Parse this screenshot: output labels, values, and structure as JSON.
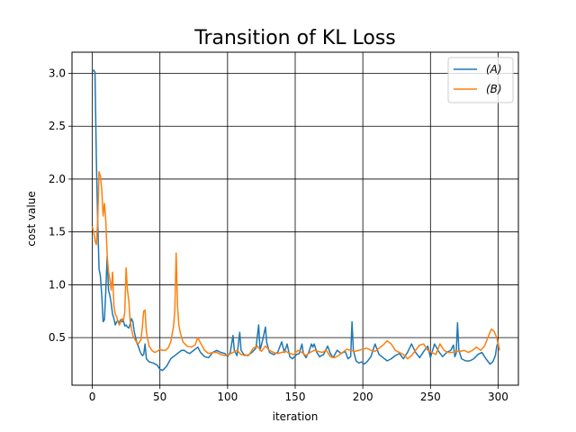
{
  "chart_data": {
    "type": "line",
    "title": "Transition of KL Loss",
    "xlabel": "iteration",
    "ylabel": "cost value",
    "xlim": [
      -15,
      315
    ],
    "ylim": [
      0.05,
      3.2
    ],
    "xticks": [
      0,
      50,
      100,
      150,
      200,
      250,
      300
    ],
    "yticks": [
      0.5,
      1.0,
      1.5,
      2.0,
      2.5,
      3.0
    ],
    "xtick_labels": [
      "0",
      "50",
      "100",
      "150",
      "200",
      "250",
      "300"
    ],
    "ytick_labels": [
      "0.5",
      "1.0",
      "1.5",
      "2.0",
      "2.5",
      "3.0"
    ],
    "grid": true,
    "legend_position": "top-right",
    "series": [
      {
        "name": "(A)",
        "color": "#1f77b4",
        "points": [
          [
            0,
            3.02
          ],
          [
            1,
            3.03
          ],
          [
            2,
            3.01
          ],
          [
            3,
            2.2
          ],
          [
            4,
            1.6
          ],
          [
            5,
            1.15
          ],
          [
            6,
            1.08
          ],
          [
            7,
            0.9
          ],
          [
            8,
            0.65
          ],
          [
            9,
            0.67
          ],
          [
            10,
            0.95
          ],
          [
            11,
            1.27
          ],
          [
            12,
            0.95
          ],
          [
            13,
            0.9
          ],
          [
            14,
            0.82
          ],
          [
            15,
            0.72
          ],
          [
            16,
            0.68
          ],
          [
            17,
            0.62
          ],
          [
            18,
            0.65
          ],
          [
            19,
            0.66
          ],
          [
            20,
            0.64
          ],
          [
            21,
            0.67
          ],
          [
            22,
            0.65
          ],
          [
            23,
            0.66
          ],
          [
            24,
            0.61
          ],
          [
            25,
            0.62
          ],
          [
            26,
            0.6
          ],
          [
            27,
            0.59
          ],
          [
            28,
            0.63
          ],
          [
            29,
            0.68
          ],
          [
            30,
            0.65
          ],
          [
            31,
            0.56
          ],
          [
            32,
            0.5
          ],
          [
            33,
            0.45
          ],
          [
            34,
            0.42
          ],
          [
            35,
            0.38
          ],
          [
            36,
            0.35
          ],
          [
            37,
            0.33
          ],
          [
            38,
            0.34
          ],
          [
            39,
            0.44
          ],
          [
            40,
            0.3
          ],
          [
            42,
            0.27
          ],
          [
            45,
            0.26
          ],
          [
            48,
            0.24
          ],
          [
            50,
            0.2
          ],
          [
            52,
            0.19
          ],
          [
            55,
            0.23
          ],
          [
            58,
            0.3
          ],
          [
            62,
            0.34
          ],
          [
            66,
            0.38
          ],
          [
            68,
            0.38
          ],
          [
            70,
            0.36
          ],
          [
            72,
            0.35
          ],
          [
            75,
            0.38
          ],
          [
            78,
            0.41
          ],
          [
            80,
            0.36
          ],
          [
            83,
            0.32
          ],
          [
            86,
            0.31
          ],
          [
            89,
            0.36
          ],
          [
            92,
            0.38
          ],
          [
            95,
            0.36
          ],
          [
            98,
            0.35
          ],
          [
            100,
            0.32
          ],
          [
            102,
            0.36
          ],
          [
            104,
            0.52
          ],
          [
            105,
            0.38
          ],
          [
            107,
            0.33
          ],
          [
            109,
            0.55
          ],
          [
            110,
            0.38
          ],
          [
            112,
            0.34
          ],
          [
            115,
            0.33
          ],
          [
            118,
            0.36
          ],
          [
            121,
            0.4
          ],
          [
            123,
            0.62
          ],
          [
            124,
            0.38
          ],
          [
            126,
            0.48
          ],
          [
            128,
            0.6
          ],
          [
            129,
            0.45
          ],
          [
            131,
            0.36
          ],
          [
            134,
            0.34
          ],
          [
            137,
            0.36
          ],
          [
            140,
            0.46
          ],
          [
            142,
            0.36
          ],
          [
            144,
            0.44
          ],
          [
            146,
            0.32
          ],
          [
            148,
            0.3
          ],
          [
            151,
            0.34
          ],
          [
            153,
            0.35
          ],
          [
            155,
            0.44
          ],
          [
            156,
            0.35
          ],
          [
            158,
            0.31
          ],
          [
            160,
            0.36
          ],
          [
            162,
            0.44
          ],
          [
            163,
            0.41
          ],
          [
            164,
            0.44
          ],
          [
            166,
            0.36
          ],
          [
            168,
            0.32
          ],
          [
            171,
            0.34
          ],
          [
            174,
            0.42
          ],
          [
            176,
            0.35
          ],
          [
            178,
            0.31
          ],
          [
            181,
            0.38
          ],
          [
            184,
            0.35
          ],
          [
            187,
            0.37
          ],
          [
            189,
            0.3
          ],
          [
            191,
            0.32
          ],
          [
            192,
            0.65
          ],
          [
            193,
            0.38
          ],
          [
            195,
            0.28
          ],
          [
            197,
            0.26
          ],
          [
            199,
            0.27
          ],
          [
            201,
            0.25
          ],
          [
            203,
            0.27
          ],
          [
            206,
            0.32
          ],
          [
            209,
            0.44
          ],
          [
            212,
            0.34
          ],
          [
            215,
            0.31
          ],
          [
            218,
            0.28
          ],
          [
            221,
            0.3
          ],
          [
            224,
            0.33
          ],
          [
            227,
            0.35
          ],
          [
            230,
            0.3
          ],
          [
            233,
            0.36
          ],
          [
            236,
            0.44
          ],
          [
            239,
            0.36
          ],
          [
            242,
            0.31
          ],
          [
            245,
            0.37
          ],
          [
            248,
            0.42
          ],
          [
            250,
            0.31
          ],
          [
            253,
            0.44
          ],
          [
            256,
            0.37
          ],
          [
            259,
            0.32
          ],
          [
            262,
            0.36
          ],
          [
            265,
            0.38
          ],
          [
            267,
            0.43
          ],
          [
            268,
            0.32
          ],
          [
            269,
            0.35
          ],
          [
            270,
            0.64
          ],
          [
            271,
            0.38
          ],
          [
            273,
            0.3
          ],
          [
            276,
            0.28
          ],
          [
            279,
            0.28
          ],
          [
            282,
            0.3
          ],
          [
            285,
            0.34
          ],
          [
            288,
            0.36
          ],
          [
            291,
            0.3
          ],
          [
            294,
            0.25
          ],
          [
            296,
            0.27
          ],
          [
            298,
            0.33
          ],
          [
            299,
            0.42
          ],
          [
            300,
            0.45
          ],
          [
            301,
            0.38
          ]
        ]
      },
      {
        "name": "(B)",
        "color": "#ff7f0e",
        "points": [
          [
            0,
            1.55
          ],
          [
            1,
            1.5
          ],
          [
            2,
            1.42
          ],
          [
            3,
            1.38
          ],
          [
            4,
            1.6
          ],
          [
            5,
            2.07
          ],
          [
            6,
            2.03
          ],
          [
            7,
            1.9
          ],
          [
            8,
            1.65
          ],
          [
            9,
            1.77
          ],
          [
            10,
            1.6
          ],
          [
            11,
            1.28
          ],
          [
            12,
            1.12
          ],
          [
            13,
            1.05
          ],
          [
            14,
            0.95
          ],
          [
            15,
            1.12
          ],
          [
            16,
            0.8
          ],
          [
            17,
            0.72
          ],
          [
            18,
            0.7
          ],
          [
            19,
            0.65
          ],
          [
            20,
            0.62
          ],
          [
            21,
            0.65
          ],
          [
            22,
            0.68
          ],
          [
            23,
            0.66
          ],
          [
            24,
            0.74
          ],
          [
            25,
            1.16
          ],
          [
            26,
            0.95
          ],
          [
            27,
            0.85
          ],
          [
            28,
            0.66
          ],
          [
            29,
            0.58
          ],
          [
            30,
            0.52
          ],
          [
            32,
            0.47
          ],
          [
            34,
            0.44
          ],
          [
            36,
            0.48
          ],
          [
            37,
            0.6
          ],
          [
            38,
            0.75
          ],
          [
            39,
            0.76
          ],
          [
            40,
            0.55
          ],
          [
            42,
            0.42
          ],
          [
            44,
            0.38
          ],
          [
            46,
            0.36
          ],
          [
            48,
            0.37
          ],
          [
            50,
            0.39
          ],
          [
            52,
            0.38
          ],
          [
            54,
            0.38
          ],
          [
            56,
            0.4
          ],
          [
            58,
            0.46
          ],
          [
            60,
            0.6
          ],
          [
            61,
            0.75
          ],
          [
            62,
            1.3
          ],
          [
            63,
            0.8
          ],
          [
            64,
            0.62
          ],
          [
            65,
            0.55
          ],
          [
            67,
            0.46
          ],
          [
            70,
            0.42
          ],
          [
            73,
            0.41
          ],
          [
            76,
            0.43
          ],
          [
            78,
            0.5
          ],
          [
            80,
            0.45
          ],
          [
            83,
            0.38
          ],
          [
            86,
            0.35
          ],
          [
            89,
            0.36
          ],
          [
            92,
            0.36
          ],
          [
            95,
            0.34
          ],
          [
            98,
            0.33
          ],
          [
            101,
            0.34
          ],
          [
            104,
            0.36
          ],
          [
            107,
            0.38
          ],
          [
            110,
            0.34
          ],
          [
            113,
            0.33
          ],
          [
            116,
            0.34
          ],
          [
            119,
            0.4
          ],
          [
            122,
            0.42
          ],
          [
            125,
            0.37
          ],
          [
            128,
            0.42
          ],
          [
            131,
            0.38
          ],
          [
            134,
            0.36
          ],
          [
            137,
            0.35
          ],
          [
            140,
            0.36
          ],
          [
            143,
            0.37
          ],
          [
            146,
            0.35
          ],
          [
            149,
            0.34
          ],
          [
            152,
            0.38
          ],
          [
            155,
            0.36
          ],
          [
            158,
            0.33
          ],
          [
            161,
            0.36
          ],
          [
            164,
            0.38
          ],
          [
            167,
            0.37
          ],
          [
            170,
            0.36
          ],
          [
            173,
            0.38
          ],
          [
            176,
            0.32
          ],
          [
            179,
            0.31
          ],
          [
            182,
            0.33
          ],
          [
            185,
            0.36
          ],
          [
            188,
            0.39
          ],
          [
            191,
            0.38
          ],
          [
            194,
            0.37
          ],
          [
            197,
            0.38
          ],
          [
            200,
            0.39
          ],
          [
            203,
            0.4
          ],
          [
            206,
            0.38
          ],
          [
            209,
            0.37
          ],
          [
            212,
            0.4
          ],
          [
            215,
            0.43
          ],
          [
            218,
            0.47
          ],
          [
            221,
            0.44
          ],
          [
            224,
            0.38
          ],
          [
            227,
            0.36
          ],
          [
            230,
            0.34
          ],
          [
            233,
            0.3
          ],
          [
            236,
            0.33
          ],
          [
            239,
            0.38
          ],
          [
            242,
            0.43
          ],
          [
            245,
            0.44
          ],
          [
            248,
            0.38
          ],
          [
            251,
            0.36
          ],
          [
            254,
            0.34
          ],
          [
            257,
            0.44
          ],
          [
            260,
            0.38
          ],
          [
            263,
            0.36
          ],
          [
            266,
            0.36
          ],
          [
            269,
            0.37
          ],
          [
            272,
            0.37
          ],
          [
            275,
            0.38
          ],
          [
            278,
            0.36
          ],
          [
            281,
            0.38
          ],
          [
            284,
            0.41
          ],
          [
            287,
            0.38
          ],
          [
            290,
            0.42
          ],
          [
            293,
            0.52
          ],
          [
            295,
            0.58
          ],
          [
            297,
            0.56
          ],
          [
            299,
            0.5
          ],
          [
            300,
            0.44
          ],
          [
            301,
            0.38
          ]
        ]
      }
    ]
  }
}
